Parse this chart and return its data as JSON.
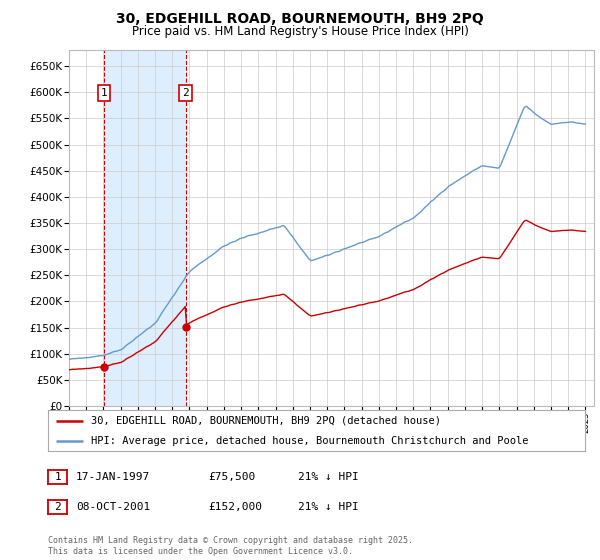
{
  "title": "30, EDGEHILL ROAD, BOURNEMOUTH, BH9 2PQ",
  "subtitle": "Price paid vs. HM Land Registry's House Price Index (HPI)",
  "legend_line1": "30, EDGEHILL ROAD, BOURNEMOUTH, BH9 2PQ (detached house)",
  "legend_line2": "HPI: Average price, detached house, Bournemouth Christchurch and Poole",
  "sale1_date": "17-JAN-1997",
  "sale1_price": "£75,500",
  "sale1_hpi": "21% ↓ HPI",
  "sale2_date": "08-OCT-2001",
  "sale2_price": "£152,000",
  "sale2_hpi": "21% ↓ HPI",
  "footer": "Contains HM Land Registry data © Crown copyright and database right 2025.\nThis data is licensed under the Open Government Licence v3.0.",
  "sale_color": "#cc0000",
  "hpi_color": "#6699cc",
  "shade_color": "#ddeeff",
  "grid_color": "#cccccc",
  "background_color": "#ffffff",
  "ylim": [
    0,
    680000
  ],
  "yticks": [
    0,
    50000,
    100000,
    150000,
    200000,
    250000,
    300000,
    350000,
    400000,
    450000,
    500000,
    550000,
    600000,
    650000
  ],
  "sale1_year": 1997.05,
  "sale2_year": 2001.77,
  "sale1_price_val": 75500,
  "sale2_price_val": 152000
}
